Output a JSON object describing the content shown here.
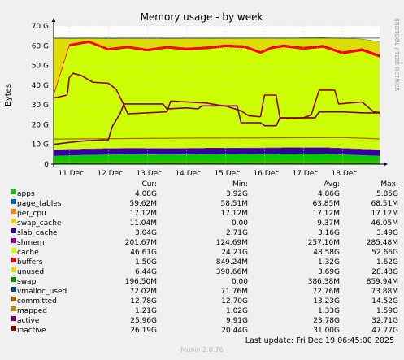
{
  "chart_data": {
    "type": "area",
    "title": "Memory usage - by week",
    "ylabel": "Bytes",
    "side_label": "RRDTOOL / TOBI OETIKER",
    "ylim": [
      0,
      70
    ],
    "y_ticks": [
      "0",
      "10 G",
      "20 G",
      "30 G",
      "40 G",
      "50 G",
      "60 G",
      "70 G"
    ],
    "x_ticks": [
      "11 Dec",
      "12 Dec",
      "13 Dec",
      "14 Dec",
      "15 Dec",
      "16 Dec",
      "17 Dec",
      "18 Dec"
    ],
    "x_day_range": [
      10.6,
      18.95
    ],
    "total_memory_G": 63.85,
    "series": [
      {
        "name": "apps",
        "color": "#00cc00",
        "points": [
          [
            10.6,
            4.1
          ],
          [
            11.5,
            4.6
          ],
          [
            12.5,
            4.9
          ],
          [
            13.5,
            4.8
          ],
          [
            14.5,
            4.9
          ],
          [
            15.5,
            5.0
          ],
          [
            16.5,
            5.1
          ],
          [
            17.5,
            5.2
          ],
          [
            18.95,
            4.1
          ]
        ]
      },
      {
        "name": "page_tables",
        "color": "#0066b3",
        "points": [
          [
            10.6,
            0.06
          ],
          [
            18.95,
            0.06
          ]
        ]
      },
      {
        "name": "per_cpu",
        "color": "#ff8000",
        "points": [
          [
            10.6,
            0.02
          ],
          [
            18.95,
            0.02
          ]
        ]
      },
      {
        "name": "swap_cache",
        "color": "#ffcc00",
        "points": [
          [
            10.6,
            0.01
          ],
          [
            18.95,
            0.01
          ]
        ]
      },
      {
        "name": "slab_cache",
        "color": "#330099",
        "points": [
          [
            10.6,
            3.0
          ],
          [
            18.95,
            3.04
          ]
        ]
      },
      {
        "name": "shmem",
        "color": "#990099",
        "points": [
          [
            10.6,
            0.2
          ],
          [
            18.95,
            0.2
          ]
        ]
      },
      {
        "name": "cache",
        "color": "#ccff00",
        "points": [
          [
            10.6,
            27.0
          ],
          [
            11.0,
            52.0
          ],
          [
            11.5,
            53.5
          ],
          [
            12.0,
            49.5
          ],
          [
            12.5,
            50.5
          ],
          [
            13.0,
            49.0
          ],
          [
            13.5,
            50.5
          ],
          [
            14.0,
            49.5
          ],
          [
            14.5,
            50.0
          ],
          [
            15.0,
            51.0
          ],
          [
            15.5,
            50.5
          ],
          [
            15.9,
            47.5
          ],
          [
            16.2,
            50.0
          ],
          [
            16.5,
            50.8
          ],
          [
            17.0,
            49.5
          ],
          [
            17.5,
            50.5
          ],
          [
            18.0,
            47.5
          ],
          [
            18.5,
            49.5
          ],
          [
            18.95,
            46.6
          ]
        ]
      },
      {
        "name": "buffers",
        "color": "#ff0000",
        "points": [
          [
            10.6,
            1.3
          ],
          [
            18.95,
            1.5
          ]
        ]
      },
      {
        "name": "unused",
        "color": "#dddd00",
        "points": [
          [
            10.6,
            28.0
          ],
          [
            11.0,
            2.5
          ],
          [
            11.5,
            1.0
          ],
          [
            12.0,
            4.5
          ],
          [
            12.5,
            3.5
          ],
          [
            13.0,
            5.0
          ],
          [
            13.5,
            3.5
          ],
          [
            14.0,
            4.5
          ],
          [
            14.5,
            4.0
          ],
          [
            15.0,
            3.0
          ],
          [
            15.5,
            3.5
          ],
          [
            15.9,
            6.5
          ],
          [
            16.2,
            4.0
          ],
          [
            16.5,
            3.0
          ],
          [
            17.0,
            4.5
          ],
          [
            17.5,
            3.5
          ],
          [
            18.0,
            6.5
          ],
          [
            18.5,
            4.5
          ],
          [
            18.95,
            6.44
          ]
        ]
      },
      {
        "name": "swap",
        "color": "#008f00",
        "points": [
          [
            10.6,
            0.2
          ],
          [
            18.95,
            0.2
          ]
        ]
      },
      {
        "name": "vmalloc_used",
        "color": "#00487d",
        "points": [
          [
            10.6,
            0.07
          ],
          [
            18.95,
            0.07
          ]
        ]
      },
      {
        "name": "committed",
        "color": "#b35a00",
        "points": [
          [
            10.6,
            12.7
          ],
          [
            12.0,
            12.9
          ],
          [
            14.0,
            13.2
          ],
          [
            16.0,
            13.3
          ],
          [
            18.0,
            13.5
          ],
          [
            18.95,
            12.78
          ]
        ]
      },
      {
        "name": "mapped",
        "color": "#b38f00",
        "points": [
          [
            10.6,
            1.0
          ],
          [
            18.95,
            1.2
          ]
        ]
      },
      {
        "name": "active",
        "color": "#6b006b",
        "points": [
          [
            10.6,
            10.0
          ],
          [
            11.0,
            11.0
          ],
          [
            11.4,
            11.8
          ],
          [
            11.6,
            12.0
          ],
          [
            12.0,
            12.3
          ],
          [
            12.1,
            19.0
          ],
          [
            12.3,
            25.5
          ],
          [
            12.4,
            30.5
          ],
          [
            13.0,
            30.5
          ],
          [
            13.4,
            30.5
          ],
          [
            13.5,
            28.0
          ],
          [
            14.0,
            28.5
          ],
          [
            14.3,
            28.0
          ],
          [
            14.4,
            29.5
          ],
          [
            15.0,
            29.5
          ],
          [
            15.3,
            29.5
          ],
          [
            15.4,
            21.0
          ],
          [
            15.9,
            21.0
          ],
          [
            16.0,
            19.5
          ],
          [
            16.3,
            19.5
          ],
          [
            16.4,
            23.5
          ],
          [
            17.0,
            23.5
          ],
          [
            17.3,
            23.5
          ],
          [
            17.4,
            26.5
          ],
          [
            18.0,
            26.5
          ],
          [
            18.5,
            26.0
          ],
          [
            18.95,
            25.96
          ]
        ]
      },
      {
        "name": "inactive",
        "color": "#8f0000",
        "points": [
          [
            10.6,
            33.5
          ],
          [
            10.95,
            35.0
          ],
          [
            11.0,
            44.0
          ],
          [
            11.1,
            46.0
          ],
          [
            11.3,
            45.0
          ],
          [
            11.6,
            41.5
          ],
          [
            12.0,
            41.0
          ],
          [
            12.2,
            38.0
          ],
          [
            12.4,
            30.0
          ],
          [
            12.5,
            25.5
          ],
          [
            13.0,
            26.0
          ],
          [
            13.5,
            26.5
          ],
          [
            13.6,
            32.0
          ],
          [
            14.0,
            31.5
          ],
          [
            14.5,
            31.0
          ],
          [
            14.8,
            30.0
          ],
          [
            15.0,
            29.5
          ],
          [
            15.4,
            27.0
          ],
          [
            15.6,
            24.5
          ],
          [
            15.9,
            24.0
          ],
          [
            16.0,
            35.0
          ],
          [
            16.3,
            35.0
          ],
          [
            16.4,
            23.0
          ],
          [
            17.0,
            23.5
          ],
          [
            17.2,
            25.0
          ],
          [
            17.4,
            37.5
          ],
          [
            17.8,
            37.5
          ],
          [
            17.9,
            30.5
          ],
          [
            18.5,
            31.5
          ],
          [
            18.8,
            26.5
          ],
          [
            18.95,
            26.19
          ]
        ]
      }
    ]
  },
  "legend": {
    "headers": [
      "Cur:",
      "Min:",
      "Avg:",
      "Max:"
    ],
    "rows": [
      {
        "name": "apps",
        "color": "#00cc00",
        "cur": "4.08G",
        "min": "3.92G",
        "avg": "4.86G",
        "max": "5.85G"
      },
      {
        "name": "page_tables",
        "color": "#0066b3",
        "cur": "59.62M",
        "min": "58.51M",
        "avg": "63.85M",
        "max": "68.51M"
      },
      {
        "name": "per_cpu",
        "color": "#ff8000",
        "cur": "17.12M",
        "min": "17.12M",
        "avg": "17.12M",
        "max": "17.12M"
      },
      {
        "name": "swap_cache",
        "color": "#ffcc00",
        "cur": "11.04M",
        "min": "0.00",
        "avg": "9.37M",
        "max": "46.05M"
      },
      {
        "name": "slab_cache",
        "color": "#330099",
        "cur": "3.04G",
        "min": "2.71G",
        "avg": "3.16G",
        "max": "3.49G"
      },
      {
        "name": "shmem",
        "color": "#990099",
        "cur": "201.67M",
        "min": "124.69M",
        "avg": "257.10M",
        "max": "285.48M"
      },
      {
        "name": "cache",
        "color": "#ccff00",
        "cur": "46.61G",
        "min": "24.21G",
        "avg": "48.58G",
        "max": "52.66G"
      },
      {
        "name": "buffers",
        "color": "#ff0000",
        "cur": "1.50G",
        "min": "849.24M",
        "avg": "1.32G",
        "max": "1.62G"
      },
      {
        "name": "unused",
        "color": "#dddd00",
        "cur": "6.44G",
        "min": "390.66M",
        "avg": "3.69G",
        "max": "28.48G"
      },
      {
        "name": "swap",
        "color": "#008f00",
        "cur": "196.50M",
        "min": "0.00",
        "avg": "386.38M",
        "max": "859.94M"
      },
      {
        "name": "vmalloc_used",
        "color": "#00487d",
        "cur": "72.02M",
        "min": "71.76M",
        "avg": "72.76M",
        "max": "73.88M"
      },
      {
        "name": "committed",
        "color": "#b35a00",
        "cur": "12.78G",
        "min": "12.70G",
        "avg": "13.23G",
        "max": "14.52G"
      },
      {
        "name": "mapped",
        "color": "#b38f00",
        "cur": "1.21G",
        "min": "1.02G",
        "avg": "1.33G",
        "max": "1.59G"
      },
      {
        "name": "active",
        "color": "#6b006b",
        "cur": "25.96G",
        "min": "9.91G",
        "avg": "23.78G",
        "max": "32.71G"
      },
      {
        "name": "inactive",
        "color": "#8f0000",
        "cur": "26.19G",
        "min": "20.44G",
        "avg": "31.00G",
        "max": "47.77G"
      }
    ]
  },
  "last_update": "Last update: Fri Dec 19 06:45:00 2025",
  "footer": "Munin 2.0.76"
}
